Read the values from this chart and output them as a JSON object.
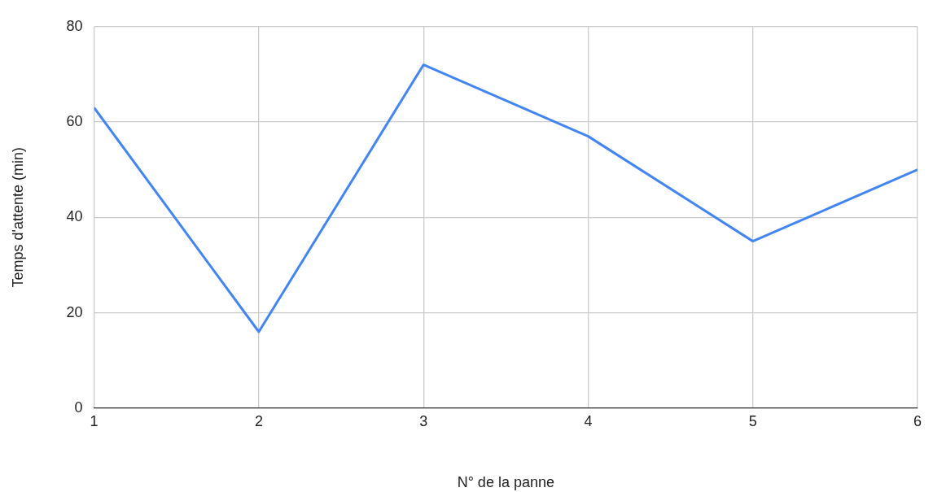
{
  "chart_data": {
    "type": "line",
    "xlabel": "N° de la panne",
    "ylabel": "Temps d'attente (min)",
    "x": [
      1,
      2,
      3,
      4,
      5,
      6
    ],
    "series": [
      {
        "color": "#4285f4",
        "values": [
          63,
          16,
          72,
          57,
          35,
          50
        ]
      }
    ],
    "xlim": [
      1,
      6
    ],
    "xticks": [
      1,
      2,
      3,
      4,
      5,
      6
    ],
    "ylim": [
      0,
      80
    ],
    "yticks": [
      0,
      20,
      40,
      60,
      80
    ],
    "grid": true,
    "legend": false,
    "marker": "none",
    "line_style": "solid"
  }
}
